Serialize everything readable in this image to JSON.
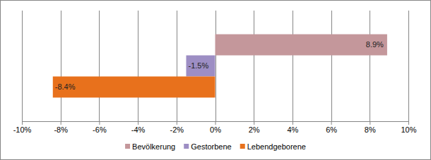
{
  "chart_data": {
    "type": "bar",
    "orientation": "horizontal",
    "categories": [
      null
    ],
    "series": [
      {
        "name": "Bevölkerung",
        "color": "#c4979b",
        "values": [
          8.9
        ],
        "value_labels": [
          "8.9%"
        ]
      },
      {
        "name": "Gestorbene",
        "color": "#9d8ec4",
        "values": [
          -1.5
        ],
        "value_labels": [
          "-1.5%"
        ]
      },
      {
        "name": "Lebendgeborene",
        "color": "#e8711c",
        "values": [
          -8.4
        ],
        "value_labels": [
          "-8.4%"
        ]
      }
    ],
    "xlim": [
      -10,
      10
    ],
    "xticks": [
      {
        "value": -10,
        "label": "-10%"
      },
      {
        "value": -8,
        "label": "-8%"
      },
      {
        "value": -6,
        "label": "-6%"
      },
      {
        "value": -4,
        "label": "-4%"
      },
      {
        "value": -2,
        "label": "-2%"
      },
      {
        "value": 0,
        "label": "0%"
      },
      {
        "value": 2,
        "label": "2%"
      },
      {
        "value": 4,
        "label": "4%"
      },
      {
        "value": 6,
        "label": "6%"
      },
      {
        "value": 8,
        "label": "8%"
      },
      {
        "value": 10,
        "label": "10%"
      }
    ],
    "grid": true,
    "legend": "bottom",
    "data_labels": true
  }
}
